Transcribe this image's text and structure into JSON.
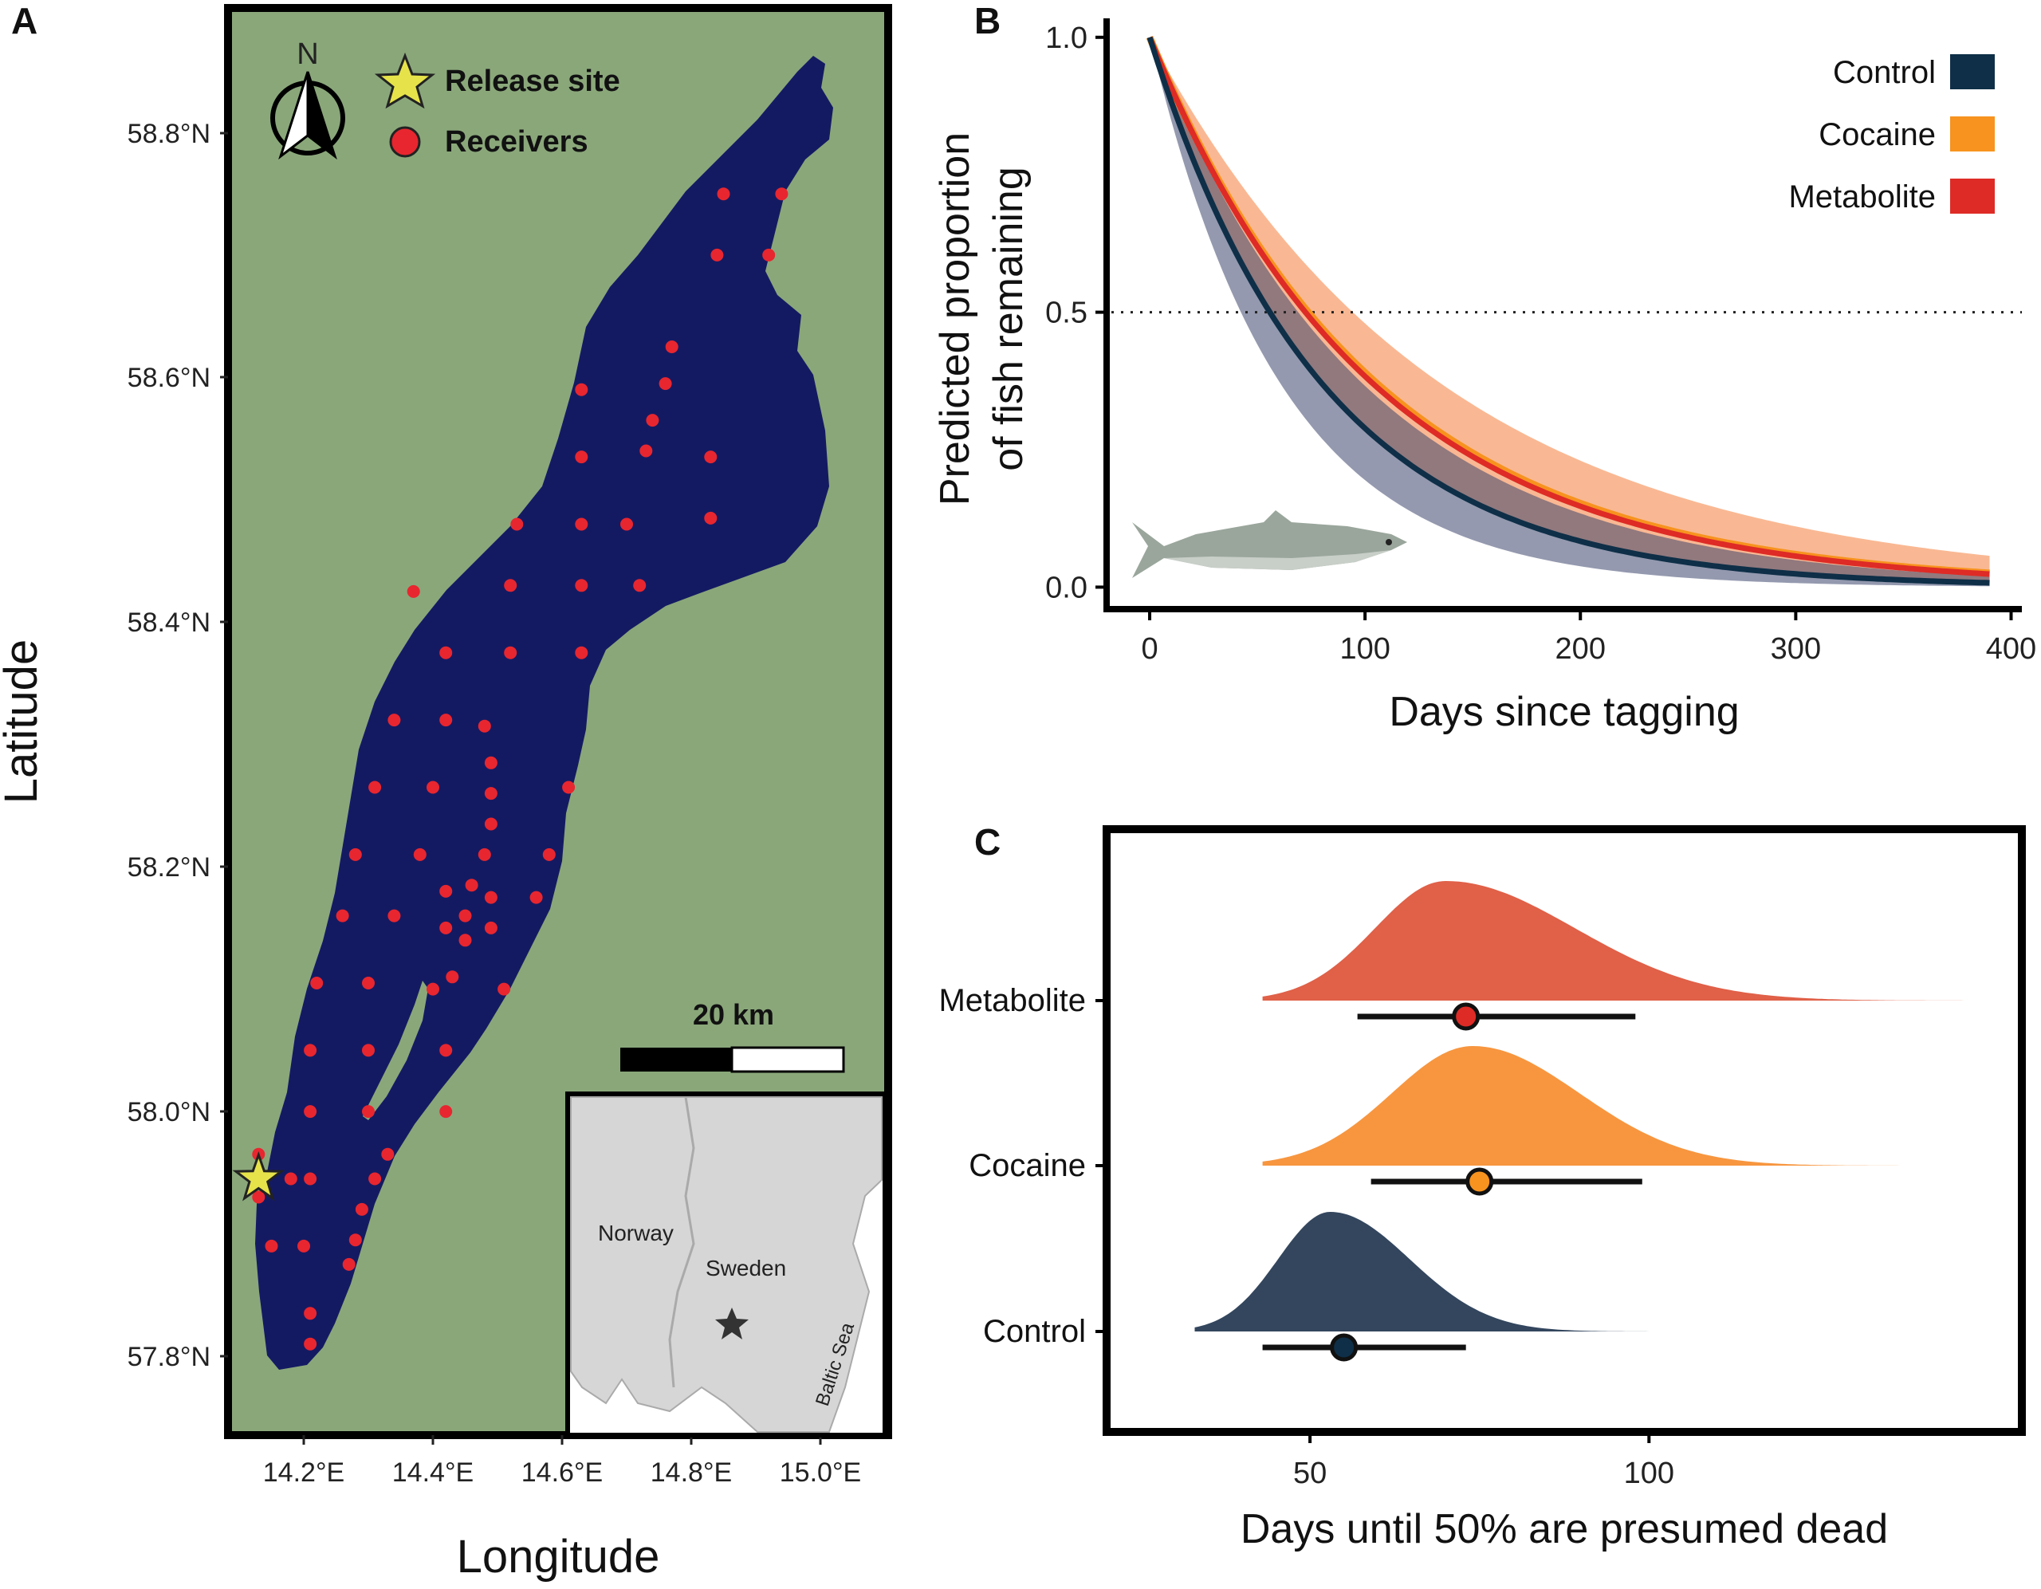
{
  "panels": {
    "a": "A",
    "b": "B",
    "c": "C"
  },
  "map": {
    "colors": {
      "land": "#8aa77a",
      "lake": "#141a62",
      "receiver": "#e8262f",
      "star": "#e6e34a"
    },
    "xlabel": "Longitude",
    "ylabel": "Latitude",
    "lat_ticks": [
      "58.8°N",
      "58.6°N",
      "58.4°N",
      "58.2°N",
      "58.0°N",
      "57.8°N"
    ],
    "lon_ticks": [
      "14.2°E",
      "14.4°E",
      "14.6°E",
      "14.8°E",
      "15.0°E"
    ],
    "north_label": "N",
    "legend": {
      "release_site": "Release site",
      "receivers": "Receivers"
    },
    "scale_bar_label": "20 km",
    "inset": {
      "norway": "Norway",
      "sweden": "Sweden",
      "baltic": "Baltic Sea"
    },
    "release_site": {
      "lon": 14.13,
      "lat": 57.945
    },
    "receivers": [
      [
        14.85,
        58.75
      ],
      [
        14.94,
        58.75
      ],
      [
        14.84,
        58.7
      ],
      [
        14.92,
        58.7
      ],
      [
        14.77,
        58.625
      ],
      [
        14.63,
        58.59
      ],
      [
        14.76,
        58.595
      ],
      [
        14.74,
        58.565
      ],
      [
        14.73,
        58.54
      ],
      [
        14.63,
        58.535
      ],
      [
        14.83,
        58.535
      ],
      [
        14.53,
        58.48
      ],
      [
        14.63,
        58.48
      ],
      [
        14.7,
        58.48
      ],
      [
        14.83,
        58.485
      ],
      [
        14.37,
        58.425
      ],
      [
        14.52,
        58.43
      ],
      [
        14.63,
        58.43
      ],
      [
        14.72,
        58.43
      ],
      [
        14.42,
        58.375
      ],
      [
        14.52,
        58.375
      ],
      [
        14.63,
        58.375
      ],
      [
        14.34,
        58.32
      ],
      [
        14.42,
        58.32
      ],
      [
        14.48,
        58.315
      ],
      [
        14.49,
        58.285
      ],
      [
        14.31,
        58.265
      ],
      [
        14.4,
        58.265
      ],
      [
        14.49,
        58.26
      ],
      [
        14.61,
        58.265
      ],
      [
        14.49,
        58.235
      ],
      [
        14.28,
        58.21
      ],
      [
        14.38,
        58.21
      ],
      [
        14.48,
        58.21
      ],
      [
        14.58,
        58.21
      ],
      [
        14.42,
        58.18
      ],
      [
        14.46,
        58.185
      ],
      [
        14.49,
        58.175
      ],
      [
        14.56,
        58.175
      ],
      [
        14.26,
        58.16
      ],
      [
        14.34,
        58.16
      ],
      [
        14.45,
        58.16
      ],
      [
        14.42,
        58.15
      ],
      [
        14.49,
        58.15
      ],
      [
        14.45,
        58.14
      ],
      [
        14.43,
        58.11
      ],
      [
        14.22,
        58.105
      ],
      [
        14.3,
        58.105
      ],
      [
        14.4,
        58.1
      ],
      [
        14.51,
        58.1
      ],
      [
        14.21,
        58.05
      ],
      [
        14.3,
        58.05
      ],
      [
        14.42,
        58.05
      ],
      [
        14.21,
        58.0
      ],
      [
        14.3,
        58.0
      ],
      [
        14.42,
        58.0
      ],
      [
        14.13,
        57.965
      ],
      [
        14.33,
        57.965
      ],
      [
        14.18,
        57.945
      ],
      [
        14.21,
        57.945
      ],
      [
        14.31,
        57.945
      ],
      [
        14.13,
        57.93
      ],
      [
        14.29,
        57.92
      ],
      [
        14.15,
        57.89
      ],
      [
        14.2,
        57.89
      ],
      [
        14.28,
        57.895
      ],
      [
        14.27,
        57.875
      ],
      [
        14.21,
        57.835
      ],
      [
        14.21,
        57.81
      ]
    ]
  },
  "chart_data": [
    {
      "type": "line",
      "panel": "B",
      "xlabel": "Days since tagging",
      "ylabel": "Predicted proportion of fish remaining",
      "ylabel_lines": [
        "Predicted proportion",
        "of fish remaining"
      ],
      "xlim": [
        -20,
        405
      ],
      "ylim": [
        -0.04,
        1.02
      ],
      "x_ticks": [
        0,
        100,
        200,
        300,
        400
      ],
      "y_ticks": [
        0.0,
        0.5,
        1.0
      ],
      "reference_line": {
        "y": 0.5,
        "style": "dotted"
      },
      "x": [
        0,
        50,
        100,
        150,
        200,
        250,
        300,
        350,
        390
      ],
      "legend_position": "top-right",
      "series": [
        {
          "name": "Control",
          "color": "#0e2f47",
          "values": [
            1.0,
            0.535,
            0.286,
            0.153,
            0.082,
            0.044,
            0.023,
            0.012,
            0.009
          ],
          "lower": [
            1.0,
            0.44,
            0.19,
            0.085,
            0.037,
            0.016,
            0.007,
            0.003,
            0.002
          ],
          "upper": [
            1.0,
            0.6,
            0.36,
            0.22,
            0.13,
            0.08,
            0.05,
            0.03,
            0.02
          ]
        },
        {
          "name": "Cocaine",
          "color": "#f7931e",
          "values": [
            1.0,
            0.623,
            0.389,
            0.242,
            0.151,
            0.094,
            0.059,
            0.037,
            0.026
          ],
          "lower": [
            1.0,
            0.53,
            0.29,
            0.16,
            0.085,
            0.045,
            0.024,
            0.013,
            0.008
          ],
          "upper": [
            1.0,
            0.7,
            0.48,
            0.33,
            0.23,
            0.16,
            0.11,
            0.075,
            0.058
          ]
        },
        {
          "name": "Metabolite",
          "color": "#de2b26",
          "values": [
            1.0,
            0.618,
            0.383,
            0.237,
            0.146,
            0.091,
            0.056,
            0.035,
            0.024
          ],
          "lower": [
            1.0,
            0.53,
            0.29,
            0.16,
            0.085,
            0.045,
            0.024,
            0.013,
            0.008
          ],
          "upper": [
            1.0,
            0.7,
            0.48,
            0.33,
            0.23,
            0.16,
            0.11,
            0.075,
            0.058
          ]
        }
      ]
    },
    {
      "type": "density",
      "panel": "C",
      "xlabel": "Days until 50% are presumed dead",
      "xlim": [
        20,
        155
      ],
      "x_ticks": [
        50,
        100
      ],
      "categories": [
        "Metabolite",
        "Cocaine",
        "Control"
      ],
      "series": [
        {
          "name": "Metabolite",
          "color": "#e06048",
          "point_color": "#de2b26",
          "median": 73,
          "interval": [
            57,
            98
          ],
          "range": [
            43,
            150
          ],
          "peak": 70
        },
        {
          "name": "Cocaine",
          "color": "#f7963f",
          "point_color": "#f7931e",
          "median": 75,
          "interval": [
            59,
            99
          ],
          "range": [
            43,
            140
          ],
          "peak": 74
        },
        {
          "name": "Control",
          "color": "#33465e",
          "point_color": "#0e2f47",
          "median": 55,
          "interval": [
            43,
            73
          ],
          "range": [
            33,
            102
          ],
          "peak": 53
        }
      ]
    }
  ]
}
